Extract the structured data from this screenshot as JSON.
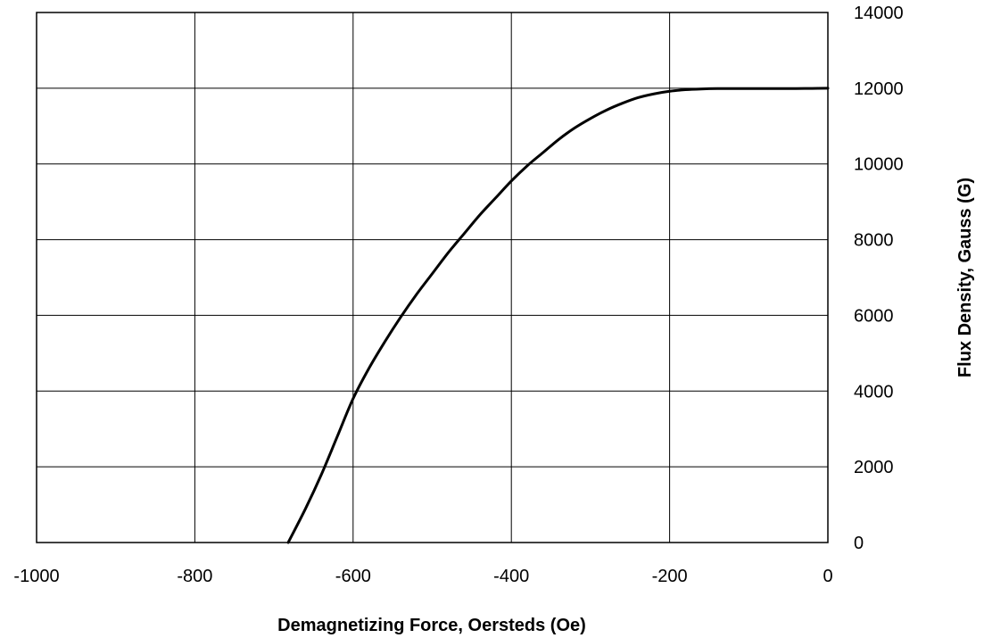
{
  "chart_data": {
    "type": "line",
    "title": "",
    "xlabel": "Demagnetizing Force, Oersteds (Oe)",
    "ylabel": "Flux Density, Gauss (G)",
    "xlim": [
      -1000,
      0
    ],
    "ylim": [
      0,
      14000
    ],
    "x_ticks": [
      -1000,
      -800,
      -600,
      -400,
      -200,
      0
    ],
    "y_ticks": [
      0,
      2000,
      4000,
      6000,
      8000,
      10000,
      12000,
      14000
    ],
    "y_axis_side": "right",
    "grid": true,
    "line_color": "#000000",
    "series": [
      {
        "x": [
          -682,
          -660,
          -640,
          -620,
          -600,
          -580,
          -560,
          -540,
          -520,
          -500,
          -480,
          -460,
          -440,
          -420,
          -400,
          -380,
          -360,
          -340,
          -320,
          -300,
          -280,
          -260,
          -240,
          -220,
          -200,
          -180,
          -160,
          -140,
          -120,
          -100,
          -80,
          -60,
          -40,
          -20,
          0
        ],
        "values": [
          0,
          900,
          1800,
          2800,
          3800,
          4600,
          5300,
          5950,
          6550,
          7100,
          7650,
          8150,
          8650,
          9100,
          9550,
          9950,
          10300,
          10650,
          10950,
          11200,
          11420,
          11600,
          11750,
          11850,
          11920,
          11960,
          11980,
          11990,
          11990,
          11990,
          11990,
          11990,
          11990,
          11995,
          12000
        ]
      }
    ]
  }
}
